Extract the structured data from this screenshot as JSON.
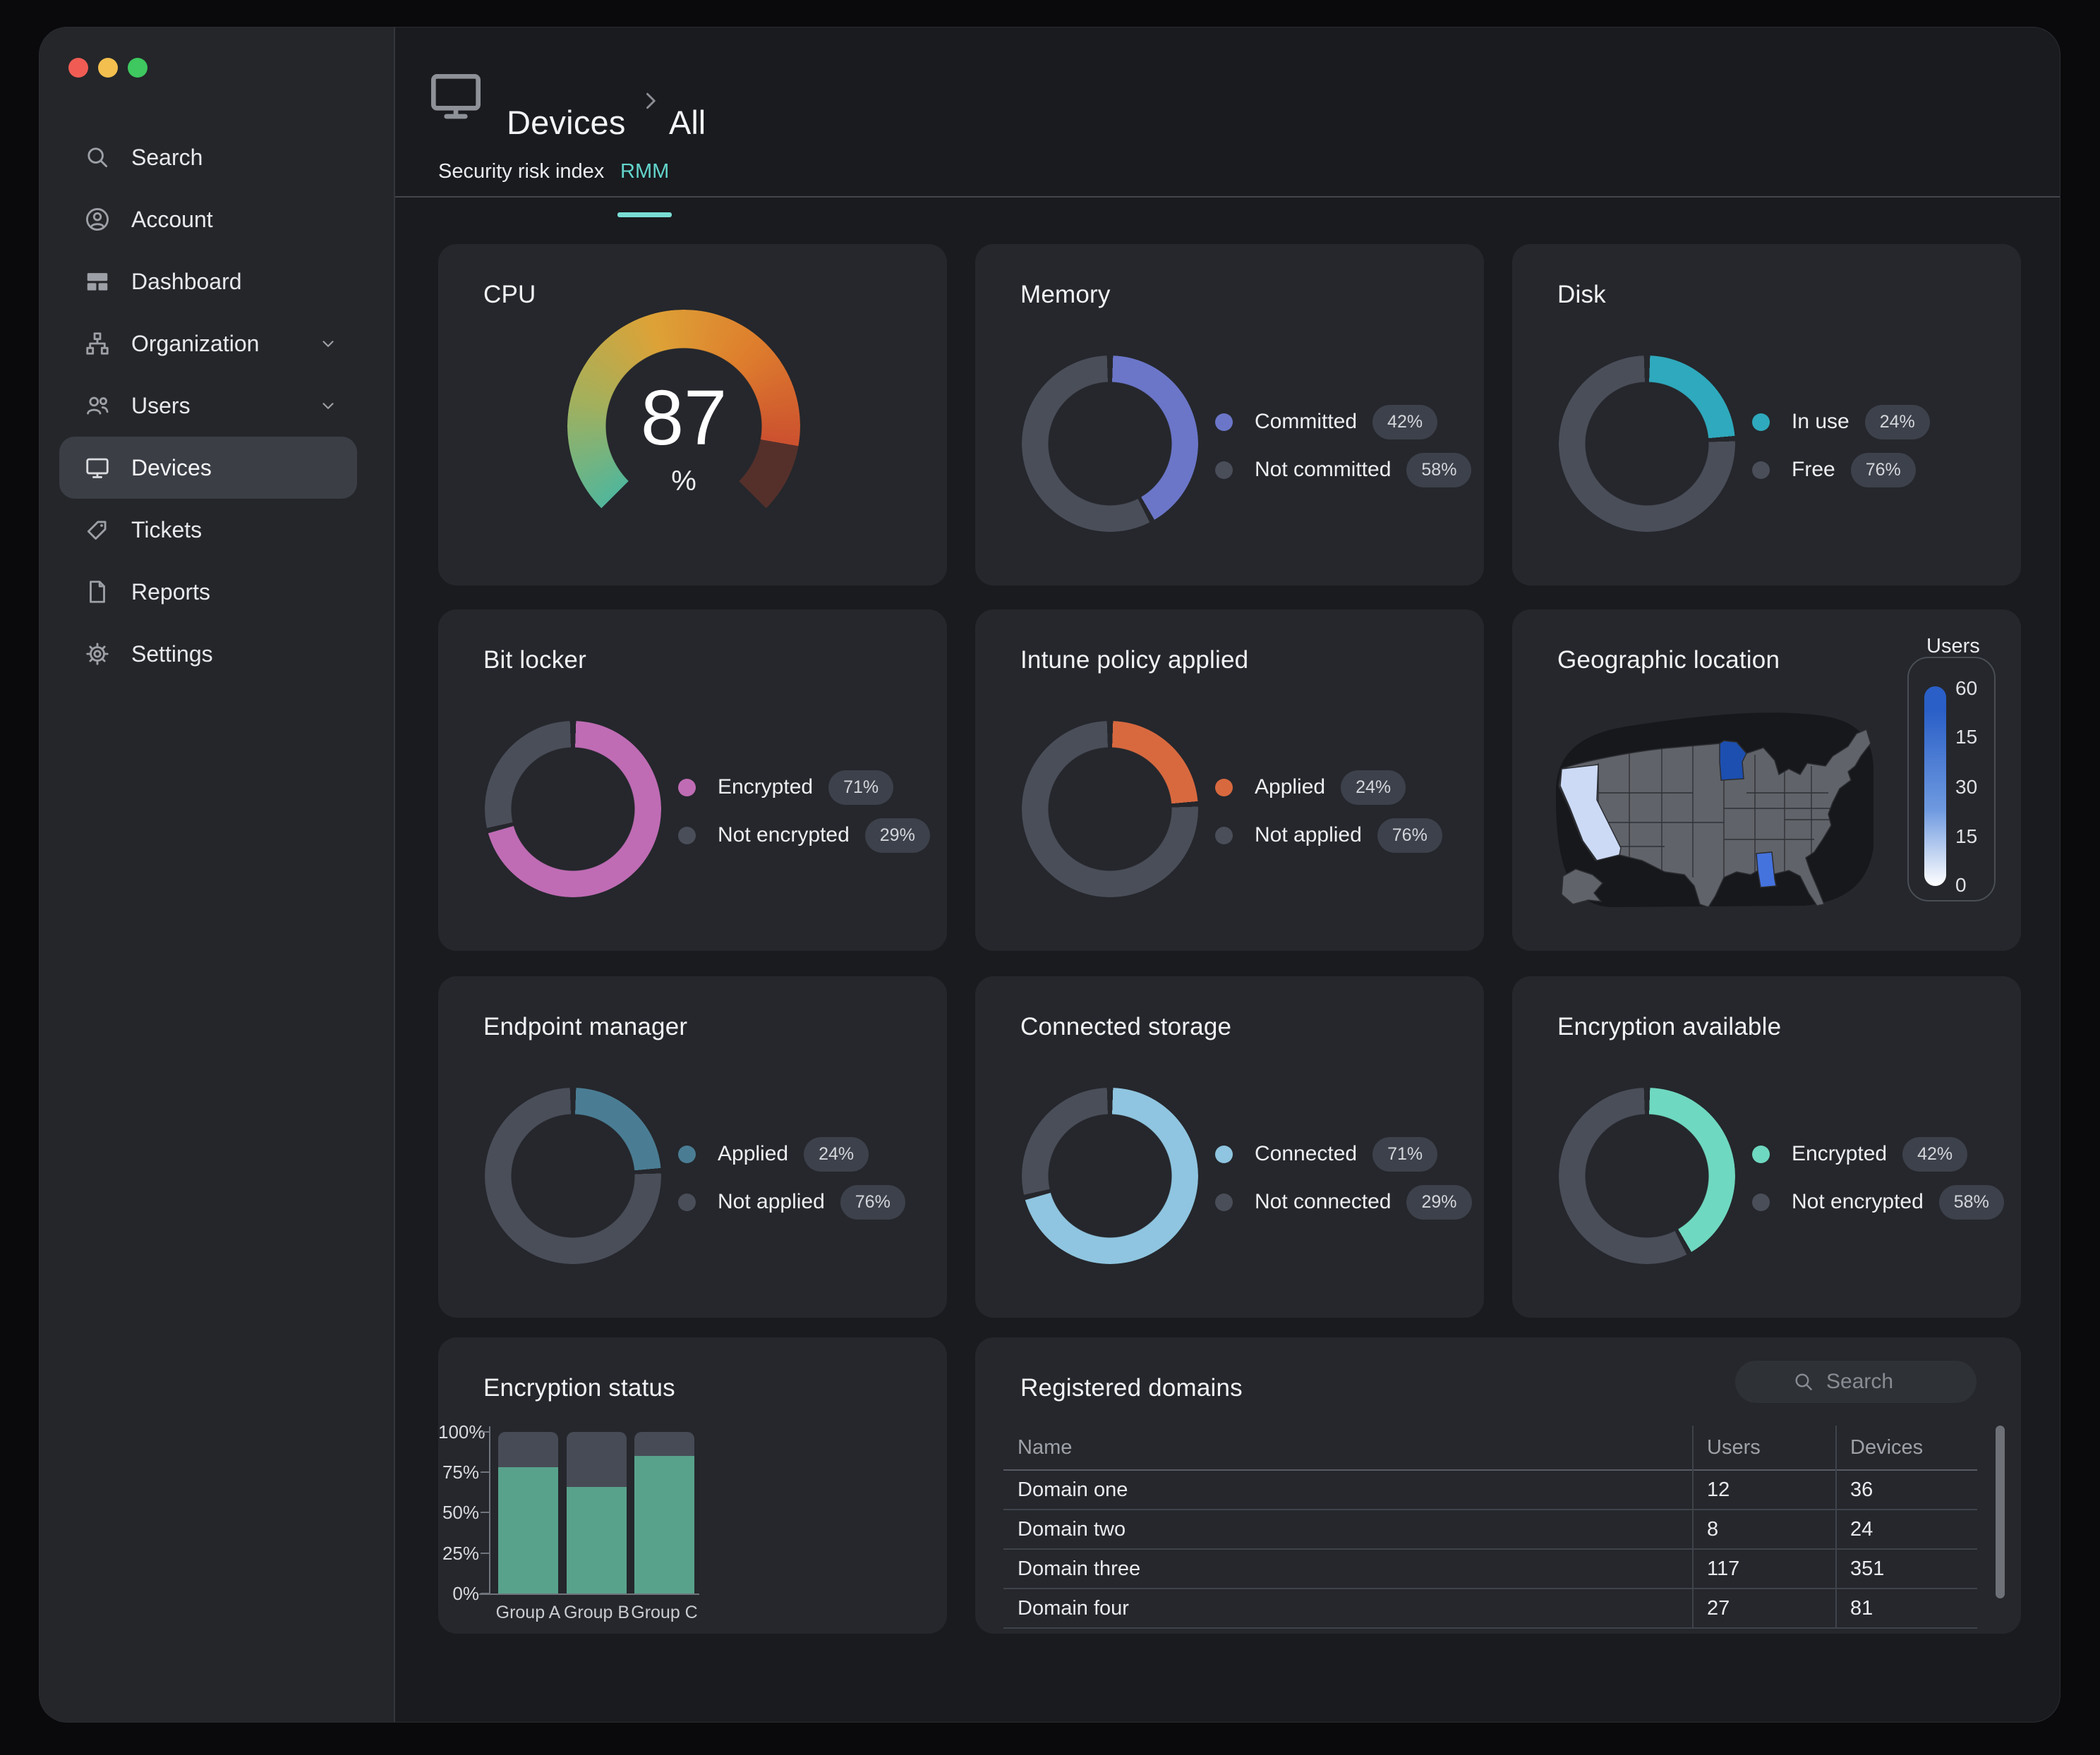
{
  "window": {
    "controls": [
      "close",
      "minimize",
      "zoom"
    ]
  },
  "sidebar": {
    "items": [
      {
        "label": "Search",
        "icon": "search-icon"
      },
      {
        "label": "Account",
        "icon": "account-icon"
      },
      {
        "label": "Dashboard",
        "icon": "dashboard-icon"
      },
      {
        "label": "Organization",
        "icon": "organization-icon",
        "expandable": true
      },
      {
        "label": "Users",
        "icon": "users-icon",
        "expandable": true
      },
      {
        "label": "Devices",
        "icon": "devices-icon",
        "selected": true
      },
      {
        "label": "Tickets",
        "icon": "tickets-icon"
      },
      {
        "label": "Reports",
        "icon": "reports-icon"
      },
      {
        "label": "Settings",
        "icon": "settings-icon"
      }
    ]
  },
  "header": {
    "icon": "monitor-icon",
    "breadcrumb": [
      "Devices",
      "All"
    ]
  },
  "tabs": [
    {
      "label": "Security risk index",
      "active": false
    },
    {
      "label": "RMM",
      "active": true
    }
  ],
  "colors": {
    "accent_teal": "#6fd8cf",
    "card_bg": "#25272c",
    "donut_track": "#4a4e59",
    "badge_bg": "#3d414b"
  },
  "cards": {
    "cpu": {
      "title": "CPU",
      "value": "87",
      "unit": "%",
      "gauge": {
        "percent": 87,
        "start_deg": 225,
        "sweep_deg": 270,
        "gradient": [
          "#52b69a",
          "#a3b05c",
          "#dda237",
          "#de7e2d",
          "#cc512f"
        ],
        "track": "#55302b"
      }
    },
    "memory": {
      "title": "Memory",
      "legend": [
        {
          "label": "Committed",
          "value": "42%",
          "color": "#6b76c9"
        },
        {
          "label": "Not committed",
          "value": "58%",
          "color": "#4a4e59"
        }
      ]
    },
    "disk": {
      "title": "Disk",
      "legend": [
        {
          "label": "In use",
          "value": "24%",
          "color": "#2fa9bd"
        },
        {
          "label": "Free",
          "value": "76%",
          "color": "#4a4e59"
        }
      ]
    },
    "bitlocker": {
      "title": "Bit locker",
      "legend": [
        {
          "label": "Encrypted",
          "value": "71%",
          "color": "#bf6cb4"
        },
        {
          "label": "Not encrypted",
          "value": "29%",
          "color": "#4a4e59"
        }
      ]
    },
    "intune": {
      "title": "Intune policy applied",
      "legend": [
        {
          "label": "Applied",
          "value": "24%",
          "color": "#d8693f"
        },
        {
          "label": "Not applied",
          "value": "76%",
          "color": "#4a4e59"
        }
      ]
    },
    "geo": {
      "title": "Geographic location",
      "legend_title": "Users",
      "scale_ticks": [
        "60",
        "15",
        "30",
        "15",
        "0"
      ],
      "scale_colors": {
        "top": "#2a5fc7",
        "bottom": "#ffffff"
      },
      "map_colors": {
        "backdrop": "#17181c",
        "land": "#606369",
        "border": "#2b2d32",
        "california": "#ccdaf6",
        "minnesota": "#1d4fb0",
        "mississippi": "#4573de"
      }
    },
    "endpoint": {
      "title": "Endpoint manager",
      "legend": [
        {
          "label": "Applied",
          "value": "24%",
          "color": "#4a7d94"
        },
        {
          "label": "Not applied",
          "value": "76%",
          "color": "#4a4e59"
        }
      ]
    },
    "storage": {
      "title": "Connected storage",
      "legend": [
        {
          "label": "Connected",
          "value": "71%",
          "color": "#8fc5e0"
        },
        {
          "label": "Not connected",
          "value": "29%",
          "color": "#4a4e59"
        }
      ]
    },
    "encryption": {
      "title": "Encryption available",
      "legend": [
        {
          "label": "Encrypted",
          "value": "42%",
          "color": "#6fd8c0"
        },
        {
          "label": "Not encrypted",
          "value": "58%",
          "color": "#4a4e59"
        }
      ]
    },
    "encstatus": {
      "title": "Encryption status",
      "type": "stacked-bar",
      "categories": [
        "Group A",
        "Group B",
        "Group C"
      ],
      "encrypted_pct": [
        78,
        66,
        85
      ],
      "yticks": [
        "100%",
        "75%",
        "50%",
        "25%",
        "0%"
      ],
      "colors": {
        "encrypted": "#58a28b",
        "remainder": "#474b56"
      }
    },
    "domains": {
      "title": "Registered domains",
      "search_placeholder": "Search",
      "columns": [
        "Name",
        "Users",
        "Devices"
      ],
      "rows": [
        [
          "Domain one",
          "12",
          "36"
        ],
        [
          "Domain two",
          "8",
          "24"
        ],
        [
          "Domain three",
          "117",
          "351"
        ],
        [
          "Domain four",
          "27",
          "81"
        ]
      ]
    }
  }
}
